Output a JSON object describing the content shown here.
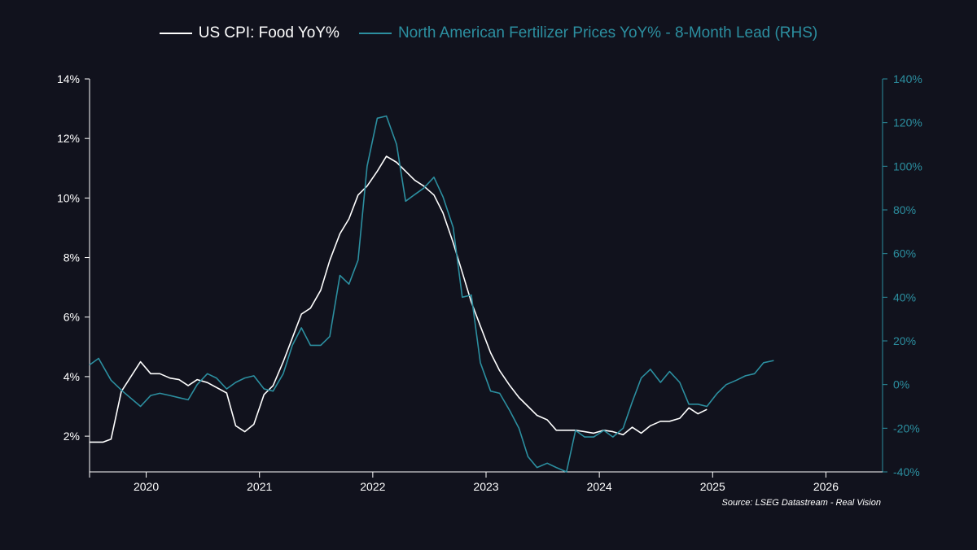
{
  "colors": {
    "background": "#11121d",
    "cpi": "#ffffff",
    "fert": "#2c8fa0",
    "left_axis": "#ffffff",
    "right_axis": "#2c8fa0"
  },
  "legend": {
    "cpi_label": "US CPI: Food YoY%",
    "fert_label": "North American Fertilizer Prices YoY% - 8-Month Lead (RHS)"
  },
  "source": "Source: LSEG Datastream - Real Vision",
  "chart_data": {
    "type": "line",
    "x_ticks": [
      "2020",
      "2021",
      "2022",
      "2023",
      "2024",
      "2025",
      "2026"
    ],
    "x_range": [
      2019.5,
      2026.5
    ],
    "y_left": {
      "ticks": [
        "2%",
        "4%",
        "6%",
        "8%",
        "10%",
        "12%",
        "14%"
      ],
      "range": [
        0.8,
        14
      ]
    },
    "y_right": {
      "ticks": [
        "-40%",
        "-20%",
        "0%",
        "20%",
        "40%",
        "60%",
        "80%",
        "100%",
        "120%",
        "140%"
      ],
      "range": [
        -40,
        140
      ]
    },
    "legend_position": "top",
    "grid": false,
    "series": [
      {
        "name": "US CPI: Food YoY%",
        "axis": "left",
        "points": [
          [
            2019.5,
            1.8
          ],
          [
            2019.55,
            1.8
          ],
          [
            2019.62,
            1.8
          ],
          [
            2019.69,
            1.9
          ],
          [
            2019.78,
            3.5
          ],
          [
            2019.95,
            4.5
          ],
          [
            2020.04,
            4.1
          ],
          [
            2020.12,
            4.1
          ],
          [
            2020.21,
            3.95
          ],
          [
            2020.29,
            3.9
          ],
          [
            2020.37,
            3.7
          ],
          [
            2020.45,
            3.9
          ],
          [
            2020.54,
            3.8
          ],
          [
            2020.71,
            3.45
          ],
          [
            2020.79,
            2.35
          ],
          [
            2020.87,
            2.15
          ],
          [
            2020.95,
            2.4
          ],
          [
            2021.04,
            3.4
          ],
          [
            2021.12,
            3.7
          ],
          [
            2021.21,
            4.5
          ],
          [
            2021.29,
            5.3
          ],
          [
            2021.37,
            6.1
          ],
          [
            2021.45,
            6.3
          ],
          [
            2021.54,
            6.9
          ],
          [
            2021.62,
            7.9
          ],
          [
            2021.71,
            8.8
          ],
          [
            2021.79,
            9.3
          ],
          [
            2021.87,
            10.1
          ],
          [
            2021.95,
            10.4
          ],
          [
            2022.04,
            10.9
          ],
          [
            2022.12,
            11.4
          ],
          [
            2022.21,
            11.2
          ],
          [
            2022.29,
            10.9
          ],
          [
            2022.37,
            10.6
          ],
          [
            2022.45,
            10.4
          ],
          [
            2022.54,
            10.1
          ],
          [
            2022.62,
            9.5
          ],
          [
            2022.71,
            8.5
          ],
          [
            2022.79,
            7.5
          ],
          [
            2022.87,
            6.5
          ],
          [
            2022.95,
            5.7
          ],
          [
            2023.04,
            4.8
          ],
          [
            2023.12,
            4.2
          ],
          [
            2023.21,
            3.7
          ],
          [
            2023.29,
            3.3
          ],
          [
            2023.37,
            3.0
          ],
          [
            2023.45,
            2.7
          ],
          [
            2023.54,
            2.55
          ],
          [
            2023.62,
            2.2
          ],
          [
            2023.71,
            2.2
          ],
          [
            2023.79,
            2.2
          ],
          [
            2023.87,
            2.15
          ],
          [
            2023.95,
            2.1
          ],
          [
            2024.04,
            2.2
          ],
          [
            2024.12,
            2.15
          ],
          [
            2024.21,
            2.05
          ],
          [
            2024.29,
            2.3
          ],
          [
            2024.37,
            2.1
          ],
          [
            2024.45,
            2.35
          ],
          [
            2024.54,
            2.5
          ],
          [
            2024.62,
            2.5
          ],
          [
            2024.71,
            2.6
          ],
          [
            2024.79,
            2.95
          ],
          [
            2024.87,
            2.75
          ],
          [
            2024.95,
            2.9
          ]
        ]
      },
      {
        "name": "North American Fertilizer Prices YoY% - 8-Month Lead (RHS)",
        "axis": "right",
        "points": [
          [
            2019.5,
            9
          ],
          [
            2019.58,
            12
          ],
          [
            2019.69,
            2
          ],
          [
            2019.79,
            -3
          ],
          [
            2019.95,
            -10
          ],
          [
            2020.04,
            -5
          ],
          [
            2020.12,
            -4
          ],
          [
            2020.21,
            -5
          ],
          [
            2020.29,
            -6
          ],
          [
            2020.37,
            -7
          ],
          [
            2020.45,
            0
          ],
          [
            2020.54,
            5
          ],
          [
            2020.62,
            3
          ],
          [
            2020.71,
            -2
          ],
          [
            2020.79,
            1
          ],
          [
            2020.87,
            3
          ],
          [
            2020.95,
            4
          ],
          [
            2021.04,
            -2
          ],
          [
            2021.12,
            -3
          ],
          [
            2021.21,
            5
          ],
          [
            2021.29,
            18
          ],
          [
            2021.37,
            26
          ],
          [
            2021.45,
            18
          ],
          [
            2021.54,
            18
          ],
          [
            2021.62,
            22
          ],
          [
            2021.71,
            50
          ],
          [
            2021.79,
            46
          ],
          [
            2021.87,
            57
          ],
          [
            2021.95,
            100
          ],
          [
            2022.04,
            122
          ],
          [
            2022.12,
            123
          ],
          [
            2022.21,
            110
          ],
          [
            2022.29,
            84
          ],
          [
            2022.37,
            87
          ],
          [
            2022.45,
            90
          ],
          [
            2022.54,
            95
          ],
          [
            2022.62,
            86
          ],
          [
            2022.71,
            72
          ],
          [
            2022.79,
            40
          ],
          [
            2022.87,
            41
          ],
          [
            2022.95,
            10
          ],
          [
            2023.04,
            -3
          ],
          [
            2023.12,
            -4
          ],
          [
            2023.21,
            -12
          ],
          [
            2023.29,
            -20
          ],
          [
            2023.37,
            -33
          ],
          [
            2023.45,
            -38
          ],
          [
            2023.54,
            -36
          ],
          [
            2023.62,
            -38
          ],
          [
            2023.71,
            -40
          ],
          [
            2023.79,
            -21
          ],
          [
            2023.87,
            -24
          ],
          [
            2023.95,
            -24
          ],
          [
            2024.04,
            -21
          ],
          [
            2024.12,
            -24
          ],
          [
            2024.21,
            -20
          ],
          [
            2024.29,
            -8
          ],
          [
            2024.37,
            3
          ],
          [
            2024.45,
            7
          ],
          [
            2024.54,
            1
          ],
          [
            2024.62,
            6
          ],
          [
            2024.71,
            1
          ],
          [
            2024.79,
            -9
          ],
          [
            2024.87,
            -9
          ],
          [
            2024.95,
            -10
          ],
          [
            2025.04,
            -4
          ],
          [
            2025.12,
            0
          ],
          [
            2025.21,
            2
          ],
          [
            2025.29,
            4
          ],
          [
            2025.37,
            5
          ],
          [
            2025.45,
            10
          ],
          [
            2025.54,
            11
          ]
        ]
      }
    ]
  }
}
